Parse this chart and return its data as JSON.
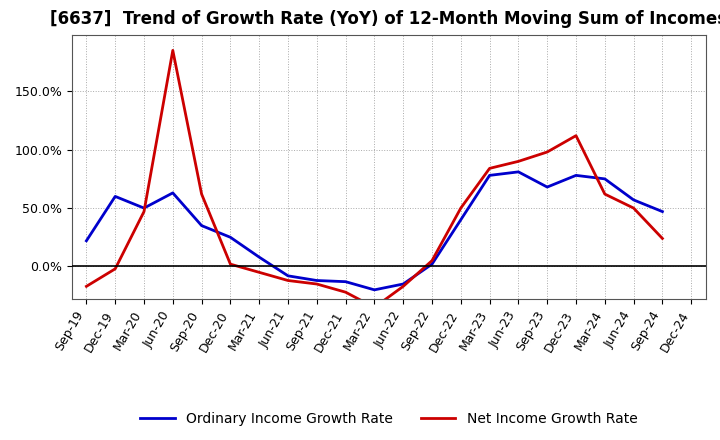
{
  "title": "[6637]  Trend of Growth Rate (YoY) of 12-Month Moving Sum of Incomes",
  "x_labels": [
    "Sep-19",
    "Dec-19",
    "Mar-20",
    "Jun-20",
    "Sep-20",
    "Dec-20",
    "Mar-21",
    "Jun-21",
    "Sep-21",
    "Dec-21",
    "Mar-22",
    "Jun-22",
    "Sep-22",
    "Dec-22",
    "Mar-23",
    "Jun-23",
    "Sep-23",
    "Dec-23",
    "Mar-24",
    "Jun-24",
    "Sep-24",
    "Dec-24"
  ],
  "ordinary_income": [
    0.22,
    0.6,
    0.5,
    0.63,
    0.35,
    0.25,
    0.08,
    -0.08,
    -0.12,
    -0.13,
    -0.2,
    -0.15,
    0.02,
    0.4,
    0.78,
    0.81,
    0.68,
    0.78,
    0.75,
    0.57,
    0.47,
    null
  ],
  "net_income": [
    -0.17,
    -0.02,
    0.47,
    1.85,
    0.62,
    0.02,
    -0.05,
    -0.12,
    -0.15,
    -0.22,
    -0.35,
    -0.17,
    0.05,
    0.5,
    0.84,
    0.9,
    0.98,
    1.12,
    0.62,
    0.5,
    0.24,
    null
  ],
  "ordinary_color": "#0000cc",
  "net_color": "#cc0000",
  "background_color": "#ffffff",
  "plot_bg_color": "#ffffff",
  "grid_color": "#aaaaaa",
  "ylim": [
    -0.28,
    1.98
  ],
  "ytick_vals": [
    0.0,
    0.5,
    1.0,
    1.5
  ],
  "ytick_labels": [
    "0.0%",
    "50.0%",
    "100.0%",
    "150.0%"
  ],
  "legend_ordinary": "Ordinary Income Growth Rate",
  "legend_net": "Net Income Growth Rate",
  "title_fontsize": 12,
  "axis_fontsize": 9,
  "legend_fontsize": 10,
  "linewidth": 2.0
}
